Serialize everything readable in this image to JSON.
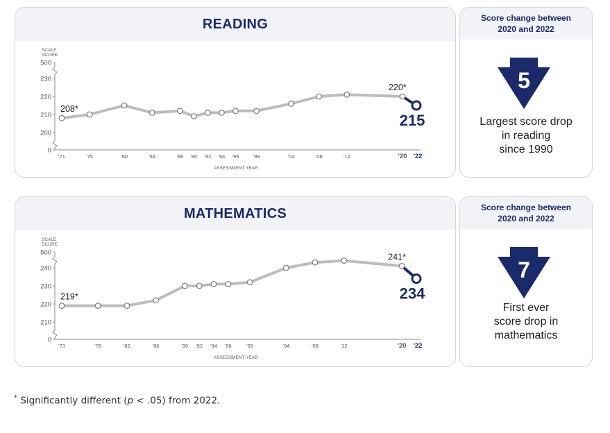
{
  "chart_data": [
    {
      "type": "line",
      "title": "READING",
      "ylabel": "SCALE SCORE",
      "xlabel": "ASSESSMENT YEAR",
      "y_ticks": [
        "0",
        "200",
        "210",
        "220",
        "230",
        "500"
      ],
      "ylim": [
        200,
        230
      ],
      "axis_break": true,
      "x_ticks": [
        "'71",
        "'75",
        "'80",
        "'84",
        "'88",
        "'90",
        "'92",
        "'94",
        "'96",
        "'99",
        "'04",
        "'08",
        "'12",
        "'20",
        "'22"
      ],
      "x": [
        1971,
        1975,
        1980,
        1984,
        1988,
        1990,
        1992,
        1994,
        1996,
        1999,
        2004,
        2008,
        2012,
        2020
      ],
      "values": [
        208,
        210,
        215,
        211,
        212,
        209,
        211,
        211,
        212,
        212,
        216,
        220,
        221,
        220
      ],
      "start_label": "208*",
      "prev_label": "220*",
      "latest": {
        "x": 2022,
        "value": 215,
        "label": "215"
      },
      "line_color": "#bcbcbc",
      "accent": "#1b2a6b"
    },
    {
      "type": "line",
      "title": "MATHEMATICS",
      "ylabel": "SCALE SCORE",
      "xlabel": "ASSESSMENT YEAR",
      "y_ticks": [
        "0",
        "210",
        "220",
        "230",
        "240",
        "500"
      ],
      "ylim": [
        210,
        240
      ],
      "axis_break": true,
      "x_ticks": [
        "'73",
        "'78",
        "'82",
        "'86",
        "'90",
        "'92",
        "'94",
        "'96",
        "'99",
        "'04",
        "'08",
        "'12",
        "'20",
        "'22"
      ],
      "x": [
        1973,
        1978,
        1982,
        1986,
        1990,
        1992,
        1994,
        1996,
        1999,
        2004,
        2008,
        2012,
        2020
      ],
      "values": [
        219,
        219,
        219,
        222,
        230,
        230,
        231,
        231,
        232,
        240,
        243,
        244,
        241
      ],
      "start_label": "219*",
      "prev_label": "241*",
      "latest": {
        "x": 2022,
        "value": 234,
        "label": "234"
      },
      "line_color": "#bcbcbc",
      "accent": "#1b2a6b"
    }
  ],
  "side_panels": [
    {
      "heading_line1": "Score change between",
      "heading_line2": "2020 and 2022",
      "change": "5",
      "desc_lines": [
        "Largest score drop",
        "in reading",
        "since 1990"
      ]
    },
    {
      "heading_line1": "Score change between",
      "heading_line2": "2020 and 2022",
      "change": "7",
      "desc_lines": [
        "First ever",
        "score drop in",
        "mathematics"
      ]
    }
  ],
  "footnote": {
    "mark": "*",
    "before": " Significantly different (",
    "p": "p",
    "after": " < .05) from 2022."
  },
  "colors": {
    "navy": "#1b2a6b",
    "grey_line": "#bcbcbc",
    "axis": "#888888"
  }
}
